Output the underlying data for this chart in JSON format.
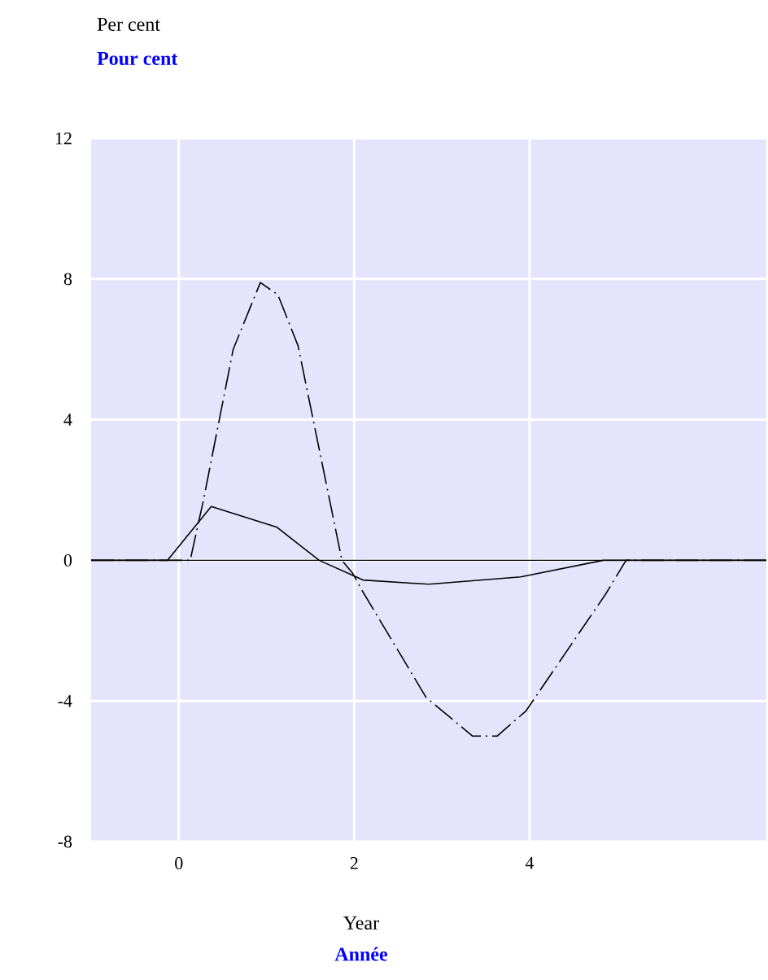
{
  "chart_data": {
    "type": "line",
    "xlabel": "Year",
    "annotations": [
      "Pour cent",
      "Année",
      "Per cent"
    ],
    "xlim": [
      -1,
      6.7
    ],
    "ylim": [
      -8,
      12
    ],
    "xticks": [
      0,
      2,
      4
    ],
    "yticks": [
      -8,
      -4,
      0,
      4,
      8,
      12
    ],
    "grid": true,
    "ref_lines": [
      {
        "axis": "y",
        "value": 0,
        "color": "#000000"
      }
    ],
    "series": [
      {
        "color": "#000000",
        "line_style": "solid",
        "x": [
          -1,
          -0.13,
          0.37,
          1.12,
          1.6,
          2.1,
          2.85,
          3.9,
          4.84,
          6.7
        ],
        "values": [
          0,
          0,
          1.53,
          0.94,
          0,
          -0.56,
          -0.68,
          -0.47,
          0,
          0
        ]
      },
      {
        "color": "#000000",
        "line_style": "dashdot",
        "x": [
          -1,
          0.13,
          0.28,
          0.62,
          0.93,
          1.13,
          1.36,
          1.86,
          1.98,
          2.1,
          2.82,
          3.35,
          3.63,
          3.96,
          4.87,
          5.1,
          6.7
        ],
        "values": [
          0,
          0,
          1.7,
          6.0,
          7.9,
          7.55,
          6.1,
          0,
          -0.36,
          -0.9,
          -3.9,
          -5.0,
          -5.0,
          -4.28,
          -0.95,
          0,
          0
        ]
      }
    ]
  }
}
